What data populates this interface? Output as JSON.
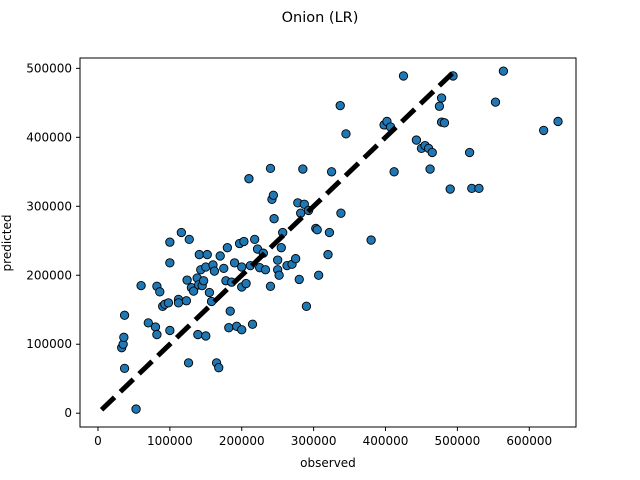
{
  "chart_data": {
    "type": "scatter",
    "title": "Onion (LR)",
    "xlabel": "observed",
    "ylabel": "predicted",
    "xlim": [
      -25000,
      665000
    ],
    "ylim": [
      -20000,
      515000
    ],
    "xticks": [
      0,
      100000,
      200000,
      300000,
      400000,
      500000,
      600000
    ],
    "xtick_labels": [
      "0",
      "100000",
      "200000",
      "300000",
      "400000",
      "500000",
      "600000"
    ],
    "yticks": [
      0,
      100000,
      200000,
      300000,
      400000,
      500000
    ],
    "ytick_labels": [
      "0",
      "100000",
      "200000",
      "300000",
      "400000",
      "500000"
    ],
    "grid": false,
    "marker_color": "#1f77b4",
    "marker_edge_color": "#000000",
    "reference_line": {
      "style": "dashed",
      "color": "#000000",
      "x": [
        5000,
        495000
      ],
      "y": [
        5000,
        495000
      ]
    },
    "points": [
      [
        53000,
        6000
      ],
      [
        37000,
        65000
      ],
      [
        33000,
        95000
      ],
      [
        35000,
        100000
      ],
      [
        36000,
        110000
      ],
      [
        37000,
        142000
      ],
      [
        60000,
        185000
      ],
      [
        70000,
        131000
      ],
      [
        80000,
        125000
      ],
      [
        82000,
        114000
      ],
      [
        82000,
        184000
      ],
      [
        86000,
        176000
      ],
      [
        90000,
        155000
      ],
      [
        93000,
        158000
      ],
      [
        98000,
        160000
      ],
      [
        100000,
        120000
      ],
      [
        100000,
        248000
      ],
      [
        100000,
        218000
      ],
      [
        112000,
        165000
      ],
      [
        112000,
        160000
      ],
      [
        116000,
        262000
      ],
      [
        123000,
        163000
      ],
      [
        124000,
        193000
      ],
      [
        126000,
        73000
      ],
      [
        127000,
        252000
      ],
      [
        130000,
        182000
      ],
      [
        133000,
        177000
      ],
      [
        138000,
        196000
      ],
      [
        139000,
        114000
      ],
      [
        140000,
        186000
      ],
      [
        141000,
        230000
      ],
      [
        143000,
        208000
      ],
      [
        145000,
        185000
      ],
      [
        147000,
        192000
      ],
      [
        150000,
        112000
      ],
      [
        150000,
        212000
      ],
      [
        152000,
        230000
      ],
      [
        155000,
        175000
      ],
      [
        158000,
        162000
      ],
      [
        160000,
        215000
      ],
      [
        162000,
        206000
      ],
      [
        165000,
        73000
      ],
      [
        168000,
        66000
      ],
      [
        170000,
        228000
      ],
      [
        175000,
        210000
      ],
      [
        178000,
        192000
      ],
      [
        180000,
        240000
      ],
      [
        182000,
        124000
      ],
      [
        184000,
        148000
      ],
      [
        186000,
        190000
      ],
      [
        190000,
        218000
      ],
      [
        193000,
        126000
      ],
      [
        197000,
        246000
      ],
      [
        200000,
        183000
      ],
      [
        200000,
        121000
      ],
      [
        200000,
        212000
      ],
      [
        203000,
        249000
      ],
      [
        206000,
        188000
      ],
      [
        210000,
        340000
      ],
      [
        212000,
        214000
      ],
      [
        215000,
        129000
      ],
      [
        218000,
        252000
      ],
      [
        222000,
        238000
      ],
      [
        225000,
        211000
      ],
      [
        230000,
        232000
      ],
      [
        233000,
        208000
      ],
      [
        240000,
        355000
      ],
      [
        240000,
        184000
      ],
      [
        242000,
        310000
      ],
      [
        244000,
        316000
      ],
      [
        245000,
        282000
      ],
      [
        250000,
        208000
      ],
      [
        250000,
        222000
      ],
      [
        252000,
        200000
      ],
      [
        255000,
        240000
      ],
      [
        257000,
        262000
      ],
      [
        263000,
        214000
      ],
      [
        270000,
        216000
      ],
      [
        275000,
        224000
      ],
      [
        278000,
        305000
      ],
      [
        280000,
        194000
      ],
      [
        282000,
        290000
      ],
      [
        285000,
        354000
      ],
      [
        287000,
        303000
      ],
      [
        290000,
        155000
      ],
      [
        293000,
        294000
      ],
      [
        303000,
        268000
      ],
      [
        305000,
        266000
      ],
      [
        307000,
        200000
      ],
      [
        320000,
        230000
      ],
      [
        322000,
        262000
      ],
      [
        325000,
        350000
      ],
      [
        337000,
        446000
      ],
      [
        338000,
        290000
      ],
      [
        345000,
        405000
      ],
      [
        380000,
        251000
      ],
      [
        398000,
        418000
      ],
      [
        402000,
        423000
      ],
      [
        407000,
        415000
      ],
      [
        412000,
        350000
      ],
      [
        425000,
        489000
      ],
      [
        443000,
        396000
      ],
      [
        450000,
        384000
      ],
      [
        455000,
        388000
      ],
      [
        460000,
        384000
      ],
      [
        462000,
        354000
      ],
      [
        465000,
        378000
      ],
      [
        475000,
        445000
      ],
      [
        478000,
        457000
      ],
      [
        478000,
        422000
      ],
      [
        482000,
        421000
      ],
      [
        490000,
        325000
      ],
      [
        494000,
        489000
      ],
      [
        517000,
        378000
      ],
      [
        520000,
        326000
      ],
      [
        530000,
        326000
      ],
      [
        553000,
        451000
      ],
      [
        564000,
        496000
      ],
      [
        620000,
        410000
      ],
      [
        640000,
        423000
      ]
    ]
  }
}
